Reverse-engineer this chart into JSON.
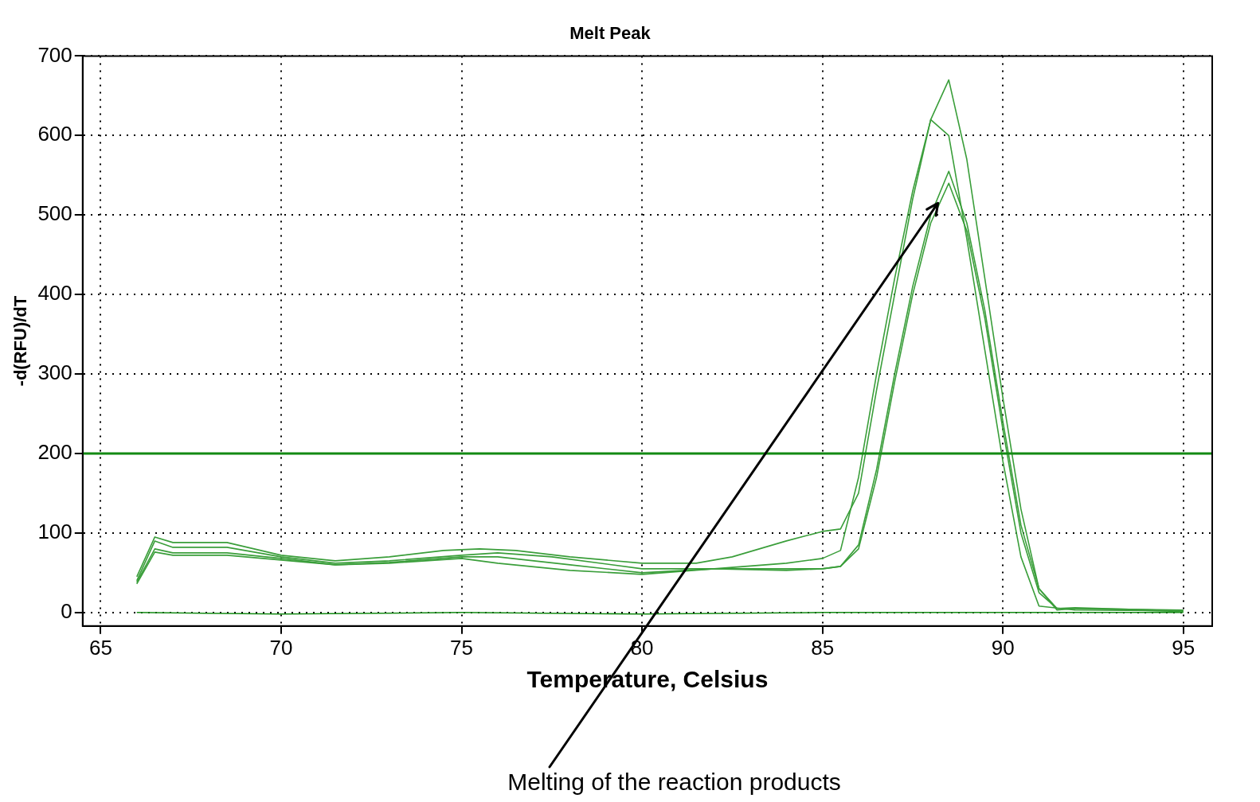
{
  "chart_data": {
    "type": "line",
    "title": "Melt Peak",
    "xlabel": "Temperature, Celsius",
    "ylabel": "-d(RFU)/dT",
    "xlim": [
      64.5,
      95.8
    ],
    "xticks": [
      65,
      70,
      75,
      80,
      85,
      90,
      95
    ],
    "ylim": [
      -17,
      700
    ],
    "yticks": [
      0,
      100,
      200,
      300,
      400,
      500,
      600,
      700
    ],
    "grid": true,
    "legend": false,
    "marker": "none",
    "line_style": "solid",
    "series": [
      {
        "color": "#3a9e3a",
        "x": [
          66,
          66.5,
          67,
          68.5,
          70,
          71.5,
          73,
          74.5,
          75.5,
          76.5,
          78,
          80,
          81.5,
          82.5,
          84,
          85,
          85.5,
          86,
          86.5,
          87,
          87.5,
          88,
          88.5,
          89,
          89.5,
          90,
          90.5,
          91,
          92,
          95
        ],
        "values": [
          45,
          95,
          88,
          88,
          72,
          65,
          70,
          78,
          80,
          78,
          70,
          62,
          62,
          70,
          90,
          102,
          105,
          150,
          280,
          400,
          520,
          620,
          600,
          470,
          330,
          190,
          70,
          8,
          3,
          2
        ]
      },
      {
        "color": "#3a9e3a",
        "x": [
          66,
          66.5,
          67,
          68.5,
          70,
          71.5,
          73,
          75,
          76,
          77.5,
          80,
          82,
          84,
          85,
          85.5,
          86,
          86.5,
          87,
          87.5,
          88,
          88.5,
          89,
          89.5,
          90,
          90.5,
          91,
          91.5,
          92,
          95
        ],
        "values": [
          40,
          90,
          82,
          82,
          70,
          62,
          65,
          72,
          75,
          70,
          55,
          55,
          62,
          68,
          78,
          170,
          300,
          420,
          530,
          620,
          670,
          570,
          420,
          270,
          130,
          30,
          3,
          5,
          3
        ]
      },
      {
        "color": "#3a9e3a",
        "x": [
          66,
          66.5,
          67,
          68.5,
          70,
          71.5,
          73,
          75,
          76,
          78,
          80,
          82,
          84,
          85,
          85.5,
          86,
          86.5,
          87,
          87.5,
          88,
          88.5,
          89,
          89.5,
          90,
          90.5,
          91,
          91.5,
          92,
          95
        ],
        "values": [
          38,
          80,
          75,
          75,
          68,
          60,
          63,
          70,
          70,
          60,
          50,
          55,
          55,
          55,
          58,
          85,
          180,
          300,
          410,
          500,
          555,
          490,
          380,
          240,
          110,
          30,
          5,
          6,
          2
        ]
      },
      {
        "color": "#3a9e3a",
        "x": [
          66,
          66.5,
          67,
          68.5,
          70,
          71.5,
          73,
          75,
          76,
          78,
          80,
          82,
          84,
          85,
          85.5,
          86,
          86.5,
          87,
          87.5,
          88,
          88.5,
          89,
          89.5,
          90,
          90.5,
          91,
          91.5,
          92,
          95
        ],
        "values": [
          36,
          76,
          72,
          72,
          66,
          60,
          62,
          68,
          62,
          53,
          48,
          55,
          53,
          55,
          58,
          80,
          170,
          290,
          400,
          490,
          540,
          480,
          370,
          230,
          100,
          25,
          5,
          5,
          1
        ]
      },
      {
        "color": "#138a13",
        "x": [
          66,
          70,
          75,
          80,
          85,
          90,
          95
        ],
        "values": [
          0,
          -2,
          0,
          -2,
          0,
          0,
          0
        ]
      }
    ],
    "ref_lines": [
      {
        "axis": "y",
        "value": 200,
        "color": "#138a13",
        "line_style": "solid"
      }
    ],
    "annotations": [
      {
        "text": "Melting of the reaction products",
        "x": 88.2,
        "y": 515
      }
    ]
  }
}
